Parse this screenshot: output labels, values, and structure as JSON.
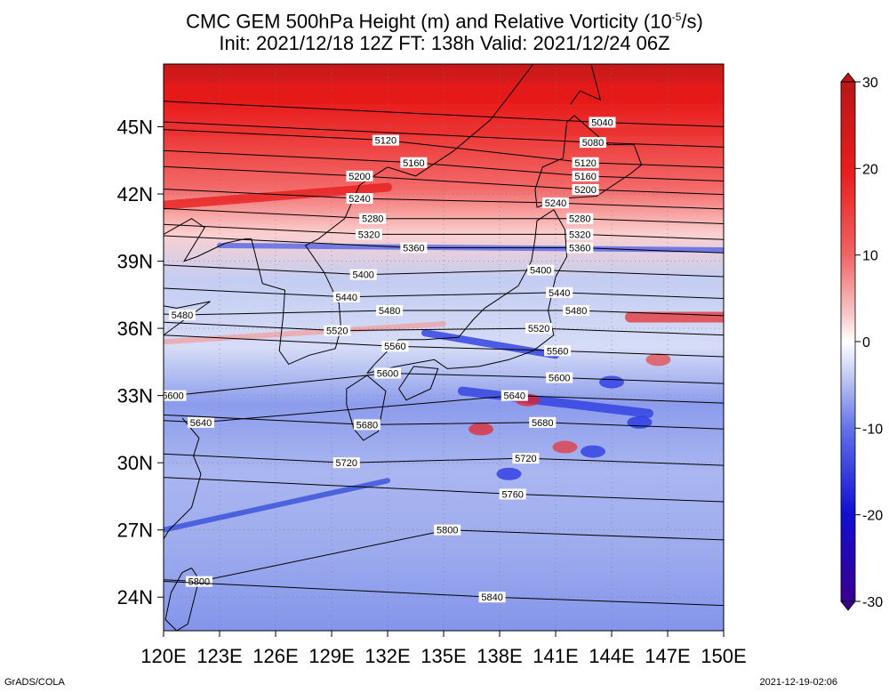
{
  "title": {
    "line1_prefix": "CMC GEM 500hPa Height (m) and Relative Vorticity (10",
    "line1_sup": "-5",
    "line1_suffix": "/s)",
    "line2": "Init: 2021/12/18 12Z  FT: 138h  Valid: 2021/12/24 06Z"
  },
  "map": {
    "lon_range": [
      120,
      150
    ],
    "lat_range": [
      22.5,
      47.8
    ],
    "x_ticks": [
      "120E",
      "123E",
      "126E",
      "129E",
      "132E",
      "135E",
      "138E",
      "141E",
      "144E",
      "147E",
      "150E"
    ],
    "y_ticks": [
      "24N",
      "27N",
      "30N",
      "33N",
      "36N",
      "39N",
      "42N",
      "45N"
    ],
    "vorticity_field_colors": {
      "strong_positive": "#e81818",
      "weak_positive": "#f5b0b0",
      "zero": "#ffffff",
      "weak_negative": "#b8c4f0",
      "strong_negative": "#1a1ad8"
    },
    "height_contours": [
      {
        "value": "5040",
        "labels": [
          [
            143.5,
            45.2
          ]
        ]
      },
      {
        "value": "5080",
        "labels": [
          [
            143.0,
            44.3
          ]
        ]
      },
      {
        "value": "5120",
        "labels": [
          [
            131.9,
            44.4
          ],
          [
            142.6,
            43.4
          ]
        ]
      },
      {
        "value": "5160",
        "labels": [
          [
            133.4,
            43.4
          ],
          [
            142.6,
            42.8
          ]
        ]
      },
      {
        "value": "5200",
        "labels": [
          [
            130.5,
            42.8
          ],
          [
            142.6,
            42.2
          ]
        ]
      },
      {
        "value": "5240",
        "labels": [
          [
            130.5,
            41.8
          ],
          [
            141.0,
            41.6
          ]
        ]
      },
      {
        "value": "5280",
        "labels": [
          [
            131.2,
            40.9
          ],
          [
            142.3,
            40.9
          ]
        ]
      },
      {
        "value": "5320",
        "labels": [
          [
            131.0,
            40.2
          ],
          [
            142.3,
            40.2
          ]
        ]
      },
      {
        "value": "5360",
        "labels": [
          [
            133.4,
            39.6
          ],
          [
            142.3,
            39.6
          ]
        ]
      },
      {
        "value": "5400",
        "labels": [
          [
            130.7,
            38.4
          ],
          [
            140.2,
            38.6
          ]
        ]
      },
      {
        "value": "5440",
        "labels": [
          [
            129.8,
            37.4
          ],
          [
            141.2,
            37.6
          ]
        ]
      },
      {
        "value": "5480",
        "labels": [
          [
            121.0,
            36.6
          ],
          [
            132.1,
            36.8
          ],
          [
            142.1,
            36.8
          ]
        ]
      },
      {
        "value": "5520",
        "labels": [
          [
            129.3,
            35.9
          ],
          [
            140.1,
            36.0
          ]
        ]
      },
      {
        "value": "5560",
        "labels": [
          [
            132.4,
            35.2
          ],
          [
            141.1,
            35.0
          ]
        ]
      },
      {
        "value": "5600",
        "labels": [
          [
            120.5,
            33.0
          ],
          [
            132.0,
            34.0
          ],
          [
            141.2,
            33.8
          ]
        ]
      },
      {
        "value": "5640",
        "labels": [
          [
            122.0,
            31.8
          ],
          [
            138.8,
            33.0
          ]
        ]
      },
      {
        "value": "5680",
        "labels": [
          [
            130.9,
            31.7
          ],
          [
            140.3,
            31.8
          ]
        ]
      },
      {
        "value": "5720",
        "labels": [
          [
            129.8,
            30.0
          ],
          [
            139.4,
            30.2
          ]
        ]
      },
      {
        "value": "5760",
        "labels": [
          [
            138.7,
            28.6
          ]
        ]
      },
      {
        "value": "5800",
        "labels": [
          [
            121.9,
            24.7
          ],
          [
            135.2,
            27.0
          ]
        ]
      },
      {
        "value": "5840",
        "labels": [
          [
            137.6,
            24.0
          ]
        ]
      }
    ]
  },
  "colorbar": {
    "ticks": [
      "30",
      "20",
      "10",
      "0",
      "-10",
      "-20",
      "-30"
    ],
    "colors": [
      "#b81818",
      "#e02020",
      "#f06060",
      "#f8c8c8",
      "#ffffff",
      "#c8d0f4",
      "#6070e8",
      "#1010d0",
      "#1000a8",
      "#3a0090"
    ]
  },
  "footer": {
    "left": "GrADS/COLA",
    "right": "2021-12-19-02:06"
  }
}
